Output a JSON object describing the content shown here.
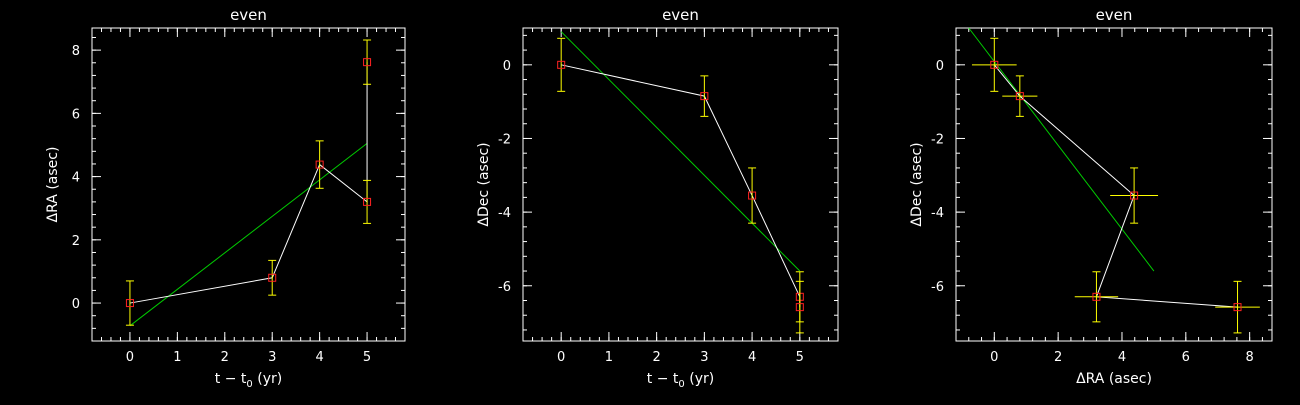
{
  "colors": {
    "background": "#000000",
    "axes": "#ffffff",
    "data_line": "#ffffff",
    "fit_line": "#00cc00",
    "marker": "#ff2222",
    "errorbar": "#ffff00"
  },
  "chart_data": [
    {
      "type": "line",
      "title": "even",
      "xlabel_main": "t − t",
      "xlabel_sub": "0",
      "xlabel_unit": " (yr)",
      "ylabel": "ΔRA (asec)",
      "xlim": [
        -0.8,
        5.8
      ],
      "ylim": [
        -1.2,
        8.7
      ],
      "xticks": [
        0,
        1,
        2,
        3,
        4,
        5
      ],
      "yticks": [
        0,
        2,
        4,
        6,
        8
      ],
      "points": [
        {
          "x": 0,
          "y": 0.0,
          "yerr": 0.7
        },
        {
          "x": 3,
          "y": 0.8,
          "yerr": 0.55
        },
        {
          "x": 4,
          "y": 4.38,
          "yerr": 0.75
        },
        {
          "x": 5,
          "y": 3.2,
          "yerr": 0.68
        },
        {
          "x": 5,
          "y": 7.62,
          "yerr": 0.7
        }
      ],
      "fit": [
        {
          "x": 0,
          "y": -0.72
        },
        {
          "x": 5,
          "y": 5.05
        }
      ]
    },
    {
      "type": "line",
      "title": "even",
      "xlabel_main": "t − t",
      "xlabel_sub": "0",
      "xlabel_unit": " (yr)",
      "ylabel": "ΔDec (asec)",
      "xlim": [
        -0.8,
        5.8
      ],
      "ylim": [
        -7.5,
        1.0
      ],
      "xticks": [
        0,
        1,
        2,
        3,
        4,
        5
      ],
      "yticks": [
        0,
        -2,
        -4,
        -6
      ],
      "points": [
        {
          "x": 0,
          "y": 0.0,
          "yerr": 0.72
        },
        {
          "x": 3,
          "y": -0.85,
          "yerr": 0.55
        },
        {
          "x": 4,
          "y": -3.55,
          "yerr": 0.75
        },
        {
          "x": 5,
          "y": -6.3,
          "yerr": 0.68
        },
        {
          "x": 5,
          "y": -6.58,
          "yerr": 0.7
        }
      ],
      "fit": [
        {
          "x": 0,
          "y": 0.9
        },
        {
          "x": 5,
          "y": -5.6
        }
      ]
    },
    {
      "type": "scatter",
      "title": "even",
      "xlabel_main": "ΔRA (asec)",
      "xlabel_sub": "",
      "xlabel_unit": "",
      "ylabel": "ΔDec (asec)",
      "xlim": [
        -1.2,
        8.7
      ],
      "ylim": [
        -7.5,
        1.0
      ],
      "xticks": [
        0,
        2,
        4,
        6,
        8
      ],
      "yticks": [
        0,
        -2,
        -4,
        -6
      ],
      "points": [
        {
          "x": 0.0,
          "y": 0.0,
          "xerr": 0.7,
          "yerr": 0.72
        },
        {
          "x": 0.8,
          "y": -0.85,
          "xerr": 0.55,
          "yerr": 0.55
        },
        {
          "x": 4.38,
          "y": -3.55,
          "xerr": 0.75,
          "yerr": 0.75
        },
        {
          "x": 3.2,
          "y": -6.3,
          "xerr": 0.68,
          "yerr": 0.68
        },
        {
          "x": 7.62,
          "y": -6.58,
          "xerr": 0.7,
          "yerr": 0.7
        }
      ],
      "fit": [
        {
          "x": -0.8,
          "y": 1.0
        },
        {
          "x": 5.0,
          "y": -5.6
        }
      ]
    }
  ]
}
